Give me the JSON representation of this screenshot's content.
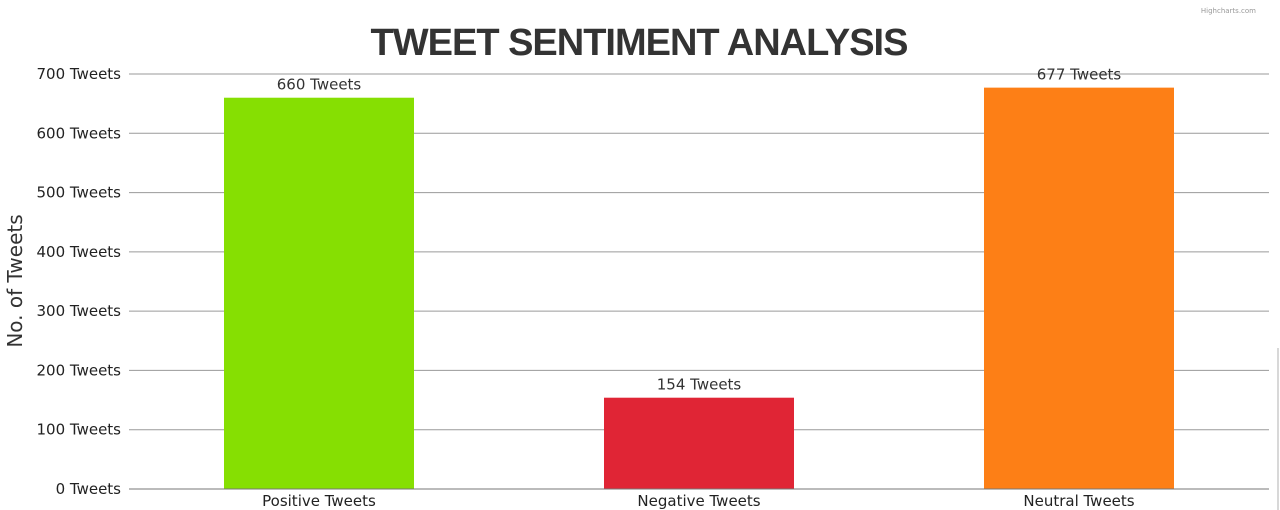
{
  "credits": "Highcharts.com",
  "chart_data": {
    "type": "bar",
    "title": "TWEET SENTIMENT ANALYSIS",
    "xlabel": "",
    "ylabel": "No. of Tweets",
    "categories": [
      "Positive Tweets",
      "Negative Tweets",
      "Neutral Tweets"
    ],
    "values": [
      660,
      154,
      677
    ],
    "data_labels": [
      "660 Tweets",
      "154 Tweets",
      "677 Tweets"
    ],
    "colors": [
      "#86df02",
      "#e02535",
      "#fd7f16"
    ],
    "ylim": [
      0,
      700
    ],
    "yticks": [
      0,
      100,
      200,
      300,
      400,
      500,
      600,
      700
    ],
    "ytick_labels": [
      "0 Tweets",
      "100 Tweets",
      "200 Tweets",
      "300 Tweets",
      "400 Tweets",
      "500 Tweets",
      "600 Tweets",
      "700 Tweets"
    ],
    "grid": true,
    "legend": "none"
  }
}
